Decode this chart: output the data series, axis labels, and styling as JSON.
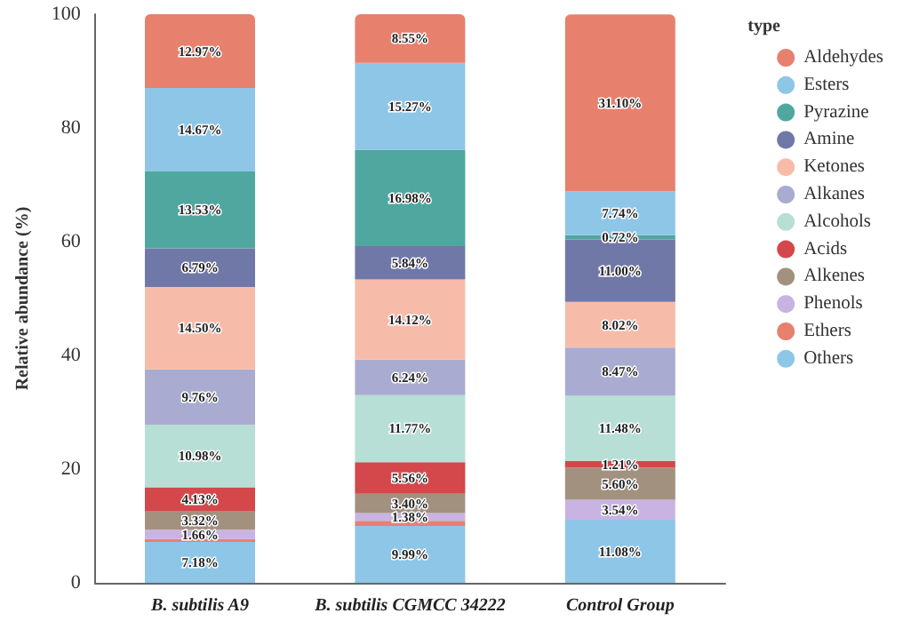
{
  "chart_data": {
    "type": "bar",
    "stacked": true,
    "ylabel": "Relative abundance (%)",
    "legend_title": "type",
    "legend": "right",
    "categories": [
      "B. subtilis A9",
      "B. subtilis CGMCC 34222",
      "Control Group"
    ],
    "ylim": [
      0,
      100
    ],
    "yticks": [
      0,
      20,
      40,
      60,
      80,
      100
    ],
    "grid": false,
    "series": [
      {
        "name": "Others",
        "color": "#8ec6e8",
        "values": [
          7.18,
          9.99,
          11.08
        ],
        "value_labels": [
          "7.18%",
          "9.99%",
          "11.08%"
        ]
      },
      {
        "name": "Ethers",
        "color": "#e8806e",
        "values": [
          0.5,
          0.9,
          null
        ],
        "value_labels": [
          null,
          null,
          null
        ]
      },
      {
        "name": "Phenols",
        "color": "#c8b3e3",
        "values": [
          1.66,
          1.38,
          3.54
        ],
        "value_labels": [
          "1.66%",
          "1.38%",
          "3.54%"
        ]
      },
      {
        "name": "Alkenes",
        "color": "#a39180",
        "values": [
          3.32,
          3.4,
          5.6
        ],
        "value_labels": [
          "3.32%",
          "3.40%",
          "5.60%"
        ]
      },
      {
        "name": "Acids",
        "color": "#d4474a",
        "values": [
          4.13,
          5.56,
          1.21
        ],
        "value_labels": [
          "4.13%",
          "5.56%",
          "1.21%"
        ]
      },
      {
        "name": "Alcohols",
        "color": "#b7dfd5",
        "values": [
          10.98,
          11.77,
          11.48
        ],
        "value_labels": [
          "10.98%",
          "11.77%",
          "11.48%"
        ]
      },
      {
        "name": "Alkanes",
        "color": "#a9acd0",
        "values": [
          9.76,
          6.24,
          8.47
        ],
        "value_labels": [
          "9.76%",
          "6.24%",
          "8.47%"
        ]
      },
      {
        "name": "Ketones",
        "color": "#f7bba9",
        "values": [
          14.5,
          14.12,
          8.02
        ],
        "value_labels": [
          "14.50%",
          "14.12%",
          "8.02%"
        ]
      },
      {
        "name": "Amine",
        "color": "#7078a8",
        "values": [
          6.79,
          5.84,
          11.0
        ],
        "value_labels": [
          "6.79%",
          "5.84%",
          "11.00%"
        ]
      },
      {
        "name": "Pyrazine",
        "color": "#4fa7a0",
        "values": [
          13.53,
          16.98,
          0.72
        ],
        "value_labels": [
          "13.53%",
          "16.98%",
          "0.72%"
        ]
      },
      {
        "name": "Esters",
        "color": "#8ec6e8",
        "values": [
          14.67,
          15.27,
          7.74
        ],
        "value_labels": [
          "14.67%",
          "15.27%",
          "7.74%"
        ]
      },
      {
        "name": "Aldehydes",
        "color": "#e8806e",
        "values": [
          12.97,
          8.55,
          31.1
        ],
        "value_labels": [
          "12.97%",
          "8.55%",
          "31.10%"
        ]
      }
    ]
  }
}
